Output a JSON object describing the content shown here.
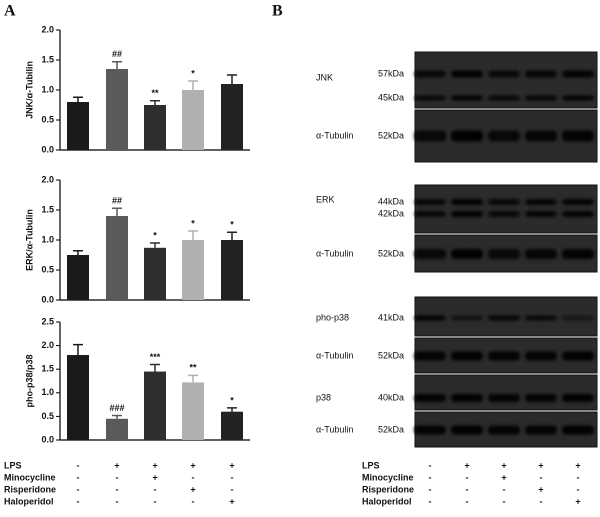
{
  "panel_labels": [
    "A",
    "B"
  ],
  "chart_data": [
    {
      "type": "bar",
      "y_label": "JNK/α-Tubilin",
      "ylim": [
        0,
        2
      ],
      "yticks": [
        {
          "value": 0,
          "label": "0.0"
        },
        0.5,
        {
          "value": 1,
          "label": "1.0"
        },
        1.5,
        {
          "value": 2,
          "label": "2.0"
        }
      ],
      "values": [
        0.8,
        1.35,
        0.75,
        1.0,
        1.1
      ],
      "errors": [
        0.08,
        0.12,
        0.07,
        0.15,
        0.15
      ],
      "annotations": [
        null,
        "##",
        "**",
        "*",
        null
      ],
      "colors": [
        "#1a1a1a",
        "#5a5a5a",
        "#2e2e2e",
        "#b0b0b0",
        "#222222"
      ]
    },
    {
      "type": "bar",
      "y_label": "ERK/α-Tubulin",
      "ylim": [
        0,
        2
      ],
      "yticks": [
        {
          "value": 0,
          "label": "0.0"
        },
        0.5,
        {
          "value": 1,
          "label": "1.0"
        },
        1.5,
        {
          "value": 2,
          "label": "2.0"
        }
      ],
      "values": [
        0.75,
        1.4,
        0.87,
        1.0,
        1.0
      ],
      "errors": [
        0.07,
        0.13,
        0.08,
        0.15,
        0.13
      ],
      "annotations": [
        null,
        "##",
        "*",
        "*",
        "*"
      ],
      "colors": [
        "#1a1a1a",
        "#5a5a5a",
        "#2e2e2e",
        "#b0b0b0",
        "#222222"
      ]
    },
    {
      "type": "bar",
      "y_label": "pho-p38/p38",
      "ylim": [
        0,
        2.5
      ],
      "yticks": [
        {
          "value": 0,
          "label": "0.0"
        },
        0.5,
        {
          "value": 1,
          "label": "1.0"
        },
        1.5,
        {
          "value": 2,
          "label": "2.0"
        },
        2.5
      ],
      "values": [
        1.8,
        0.45,
        1.45,
        1.22,
        0.6
      ],
      "errors": [
        0.22,
        0.07,
        0.15,
        0.15,
        0.08
      ],
      "annotations": [
        null,
        "###",
        "***",
        "**",
        "*"
      ],
      "colors": [
        "#1a1a1a",
        "#5a5a5a",
        "#2e2e2e",
        "#b0b0b0",
        "#222222"
      ]
    }
  ],
  "treatments_a": [
    {
      "name": "LPS",
      "marks": [
        "-",
        "+",
        "+",
        "+",
        "+"
      ]
    },
    {
      "name": "Minocycline",
      "marks": [
        "-",
        "-",
        "+",
        "-",
        "-"
      ]
    },
    {
      "name": "Risperidone",
      "marks": [
        "-",
        "-",
        "-",
        "+",
        "-"
      ]
    },
    {
      "name": "Haloperidol",
      "marks": [
        "-",
        "-",
        "-",
        "-",
        "+"
      ]
    }
  ],
  "treatments_b": [
    {
      "name": "LPS",
      "marks": [
        "-",
        "+",
        "+",
        "+",
        "+"
      ]
    },
    {
      "name": "Minocycline",
      "marks": [
        "-",
        "-",
        "+",
        "-",
        "-"
      ]
    },
    {
      "name": "Risperidone",
      "marks": [
        "-",
        "-",
        "-",
        "+",
        "-"
      ]
    },
    {
      "name": "Haloperidol",
      "marks": [
        "-",
        "-",
        "-",
        "-",
        "+"
      ]
    }
  ],
  "blots": [
    {
      "rows": [
        {
          "label": "JNK",
          "kda": [
            "57kDa",
            "45kDa"
          ]
        },
        {
          "label": "α-Tubulin",
          "kda": [
            "52kDa"
          ]
        }
      ]
    },
    {
      "rows": [
        {
          "label": "ERK",
          "kda": [
            "44kDa",
            "42kDa"
          ]
        },
        {
          "label": "α-Tubulin",
          "kda": [
            "52kDa"
          ]
        }
      ]
    },
    {
      "rows": [
        {
          "label": "pho-p38",
          "kda": [
            "41kDa"
          ]
        },
        {
          "label": "α-Tubulin",
          "kda": [
            "52kDa"
          ]
        },
        {
          "label": "p38",
          "kda": [
            "40kDa"
          ]
        },
        {
          "label": "α-Tubulin",
          "kda": [
            "52kDa"
          ]
        }
      ]
    }
  ]
}
